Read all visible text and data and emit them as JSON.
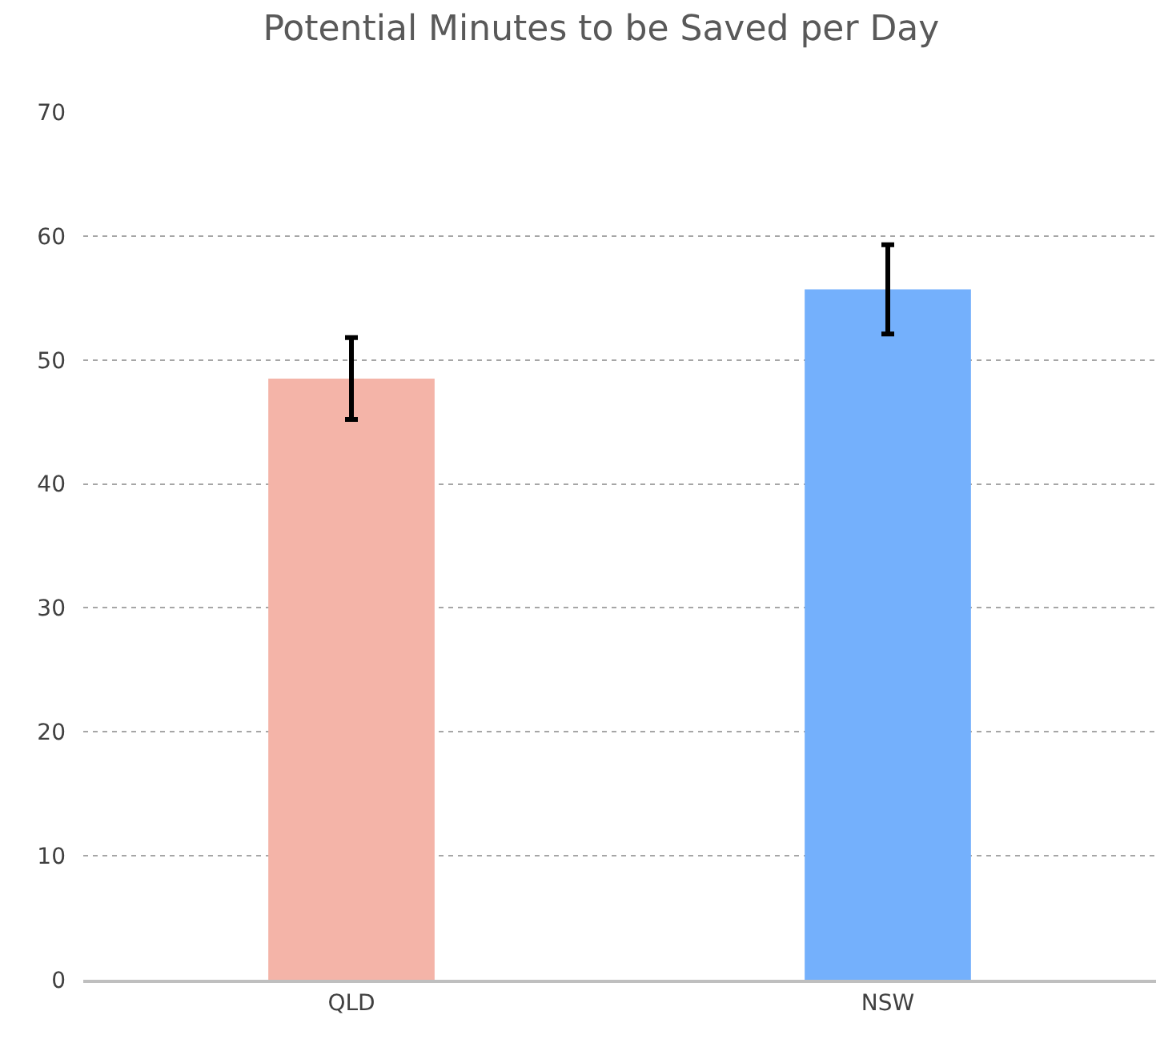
{
  "chart_data": {
    "type": "bar",
    "title": "Potential Minutes to be Saved per Day",
    "categories": [
      "QLD",
      "NSW"
    ],
    "values": [
      48.5,
      55.7
    ],
    "colors": [
      "#f4b4a8",
      "#74b0fc"
    ],
    "errors": [
      3.3,
      3.6
    ],
    "ylim": [
      0,
      70
    ],
    "yticks": [
      0,
      10,
      20,
      30,
      40,
      50,
      60,
      70
    ],
    "grid": "y",
    "line_style": "dotted"
  }
}
